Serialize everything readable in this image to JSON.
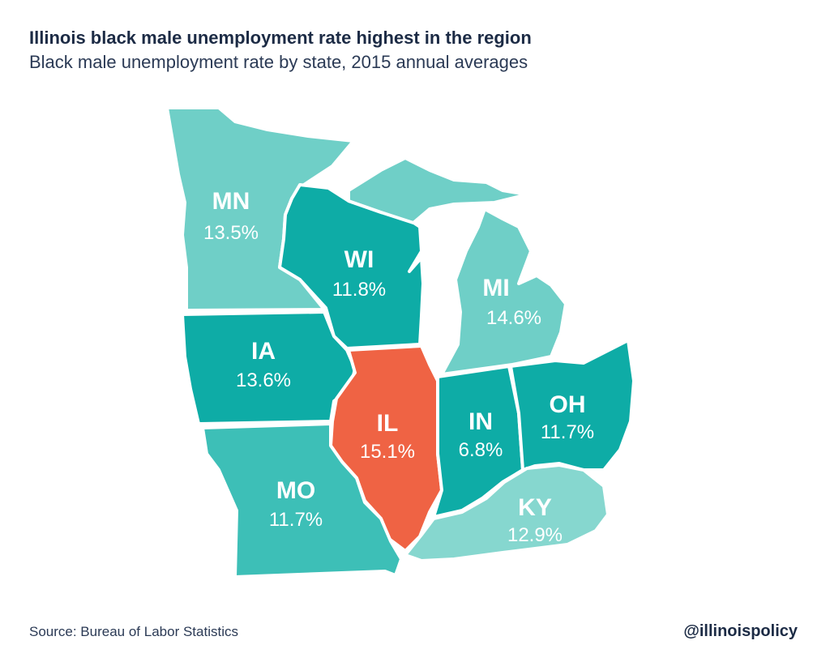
{
  "title": "Illinois black male unemployment rate highest in the region",
  "subtitle": "Black male unemployment rate by state, 2015 annual averages",
  "source": "Source: Bureau of Labor Statistics",
  "handle": "@illinoispolicy",
  "colors": {
    "highlight": "#ef6344",
    "dark_teal": "#0eaca6",
    "mid_teal": "#3dbfb7",
    "light_teal": "#6fcfc7",
    "pale_teal": "#86d7cf"
  },
  "states": [
    {
      "abbr": "MN",
      "value": "13.5%",
      "rate": 13.5
    },
    {
      "abbr": "WI",
      "value": "11.8%",
      "rate": 11.8
    },
    {
      "abbr": "MI",
      "value": "14.6%",
      "rate": 14.6
    },
    {
      "abbr": "IA",
      "value": "13.6%",
      "rate": 13.6
    },
    {
      "abbr": "IL",
      "value": "15.1%",
      "rate": 15.1
    },
    {
      "abbr": "IN",
      "value": "6.8%",
      "rate": 6.8
    },
    {
      "abbr": "OH",
      "value": "11.7%",
      "rate": 11.7
    },
    {
      "abbr": "MO",
      "value": "11.7%",
      "rate": 11.7
    },
    {
      "abbr": "KY",
      "value": "12.9%",
      "rate": 12.9
    }
  ]
}
